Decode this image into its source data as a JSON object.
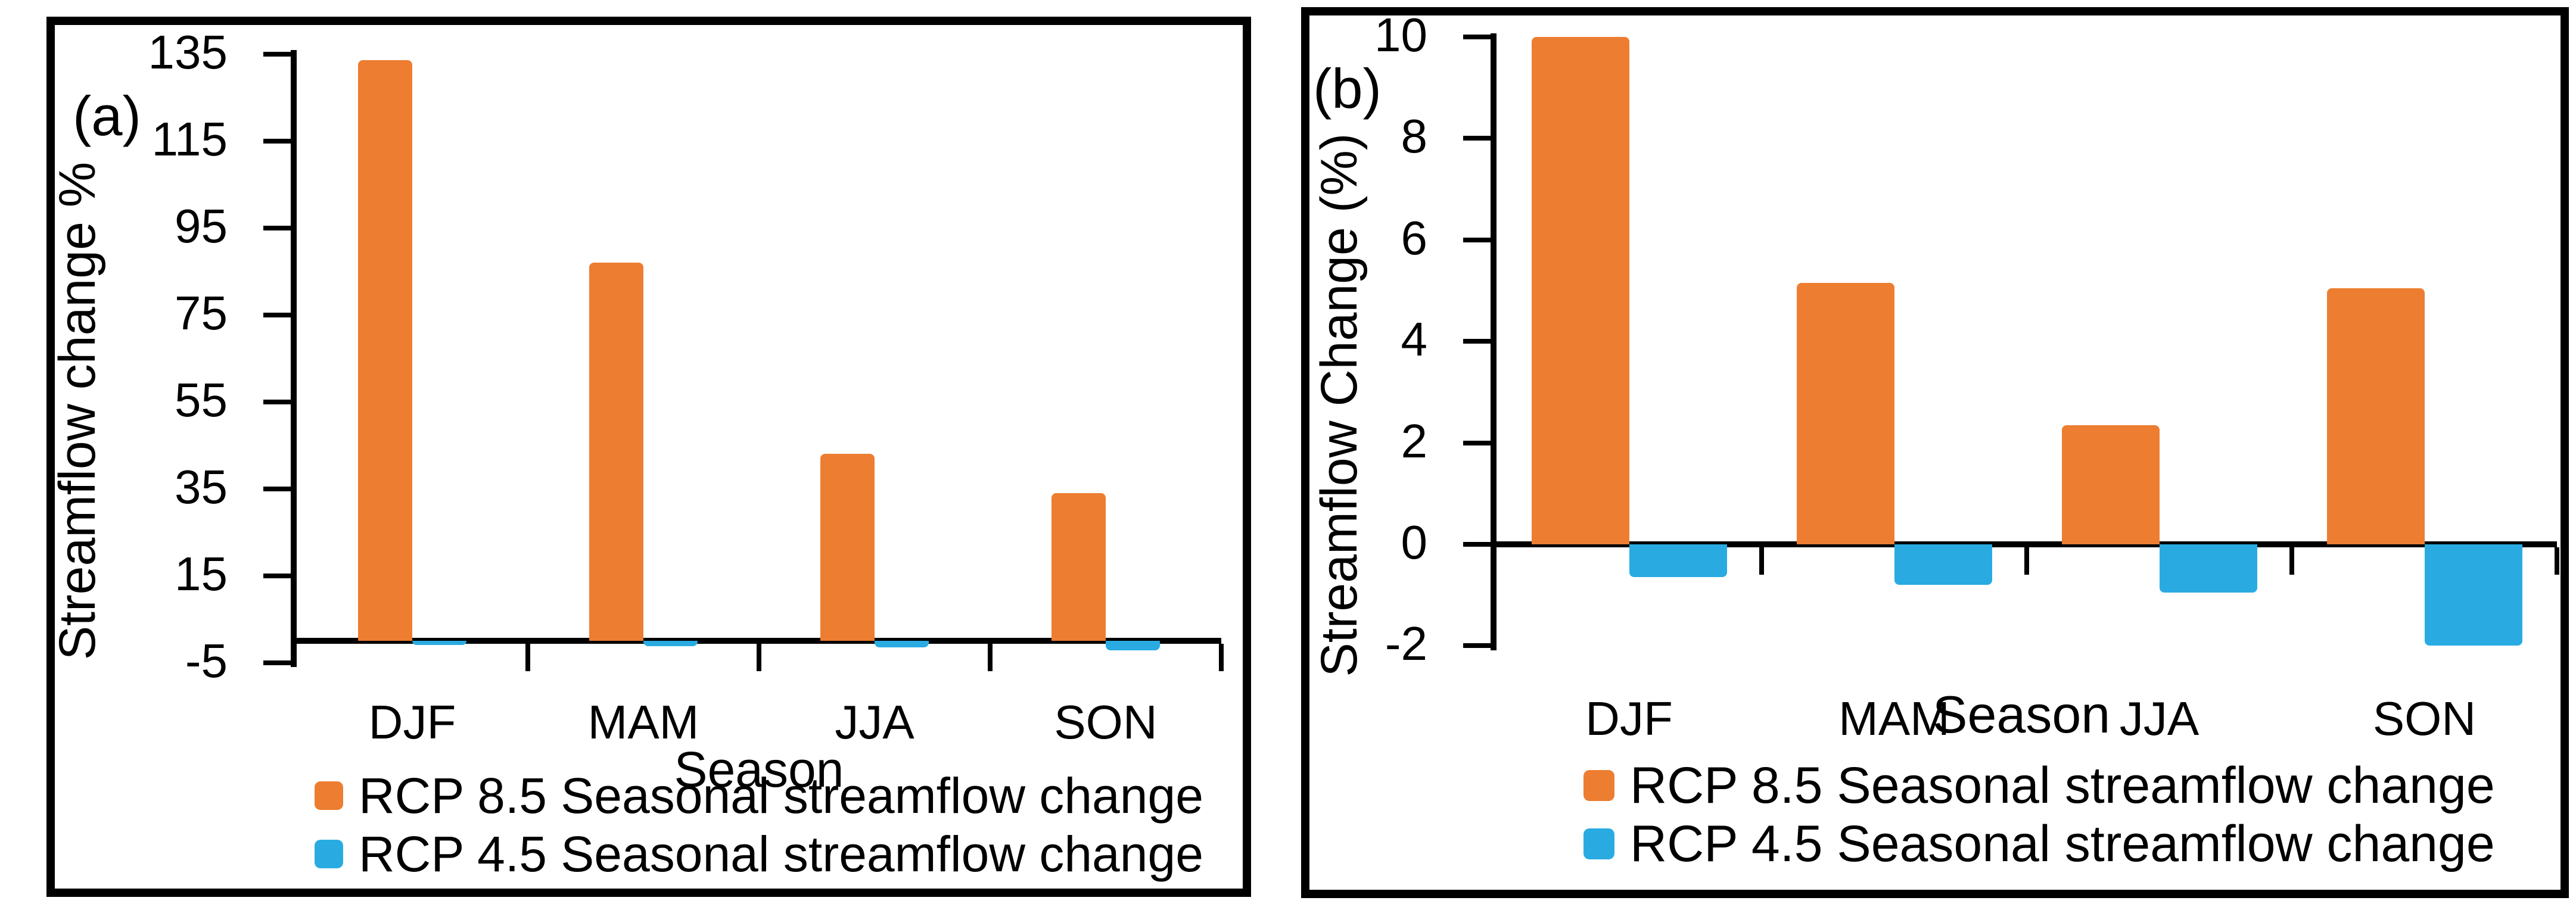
{
  "figure_type": "seasonal-streamflow-change-bar-charts",
  "chart_data": [
    {
      "type": "bar",
      "panel_label": "(a)",
      "title": "",
      "xlabel": "Season",
      "ylabel": "Streamflow change %",
      "categories": [
        "DJF",
        "MAM",
        "JJA",
        "SON"
      ],
      "series": [
        {
          "name": "RCP 8.5 Seasonal streamflow change",
          "color": "#ED7D31",
          "values": [
            133.5,
            87,
            43,
            34
          ]
        },
        {
          "name": "RCP 4.5 Seasonal streamflow change",
          "color": "#29ABE2",
          "values": [
            -1.0,
            -1.3,
            -1.5,
            -2.2
          ]
        }
      ],
      "yticks": [
        135,
        115,
        95,
        75,
        55,
        35,
        15,
        -5
      ],
      "ylim": [
        -5,
        137
      ],
      "grid": false,
      "legend_position": "bottom"
    },
    {
      "type": "bar",
      "panel_label": "(b)",
      "title": "",
      "xlabel": "Season",
      "ylabel": "Streamflow Change (%)",
      "categories": [
        "DJF",
        "MAM",
        "JJA",
        "SON"
      ],
      "series": [
        {
          "name": "RCP 8.5 Seasonal streamflow change",
          "color": "#ED7D31",
          "values": [
            10.0,
            5.15,
            2.35,
            5.05
          ]
        },
        {
          "name": "RCP 4.5 Seasonal streamflow change",
          "color": "#29ABE2",
          "values": [
            -0.65,
            -0.8,
            -0.95,
            -2.0
          ]
        }
      ],
      "yticks": [
        10,
        8,
        6,
        4,
        2,
        0,
        -2
      ],
      "ylim": [
        -2.3,
        10.4
      ],
      "grid": false,
      "legend_position": "bottom"
    }
  ]
}
